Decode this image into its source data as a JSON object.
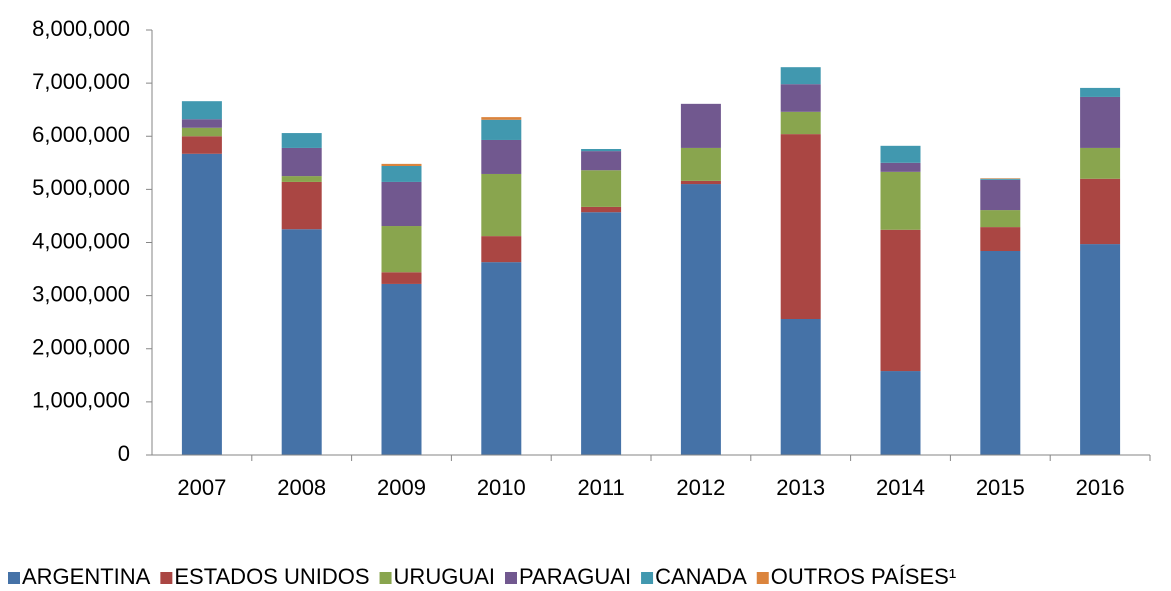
{
  "chart_data": {
    "type": "stacked_bar",
    "categories": [
      "2007",
      "2008",
      "2009",
      "2010",
      "2011",
      "2012",
      "2013",
      "2014",
      "2015",
      "2016"
    ],
    "series": [
      {
        "name": "ARGENTINA",
        "color": "#4572A7",
        "values": [
          5670000,
          4250000,
          3220000,
          3630000,
          4570000,
          5100000,
          2560000,
          1580000,
          3840000,
          3970000
        ]
      },
      {
        "name": "ESTADOS UNIDOS",
        "color": "#AA4643",
        "values": [
          330000,
          890000,
          220000,
          490000,
          100000,
          60000,
          3480000,
          2660000,
          450000,
          1230000
        ]
      },
      {
        "name": "URUGUAI",
        "color": "#89A54E",
        "values": [
          160000,
          110000,
          870000,
          1170000,
          690000,
          620000,
          420000,
          1090000,
          320000,
          580000
        ]
      },
      {
        "name": "PARAGUAI",
        "color": "#71588F",
        "values": [
          160000,
          530000,
          830000,
          640000,
          360000,
          830000,
          520000,
          170000,
          570000,
          960000
        ]
      },
      {
        "name": "CANADA",
        "color": "#4198AF",
        "values": [
          340000,
          280000,
          300000,
          380000,
          40000,
          0,
          320000,
          320000,
          20000,
          170000
        ]
      },
      {
        "name": "OUTROS PAÍSES¹",
        "color": "#DB843D",
        "values": [
          0,
          0,
          40000,
          50000,
          0,
          0,
          0,
          0,
          10000,
          0
        ]
      }
    ],
    "ylim": [
      0,
      8000000
    ],
    "yticks": [
      0,
      {
        "value": 1000000,
        "label": "1,000,000"
      },
      {
        "value": 2000000,
        "label": "2,000,000"
      },
      {
        "value": 3000000,
        "label": "3,000,000"
      },
      {
        "value": 4000000,
        "label": "4,000,000"
      },
      {
        "value": 5000000,
        "label": "5,000,000"
      },
      {
        "value": 6000000,
        "label": "6,000,000"
      },
      {
        "value": 7000000,
        "label": "7,000,000"
      },
      {
        "value": 8000000,
        "label": "8,000,000"
      }
    ],
    "legend": "bottom"
  }
}
